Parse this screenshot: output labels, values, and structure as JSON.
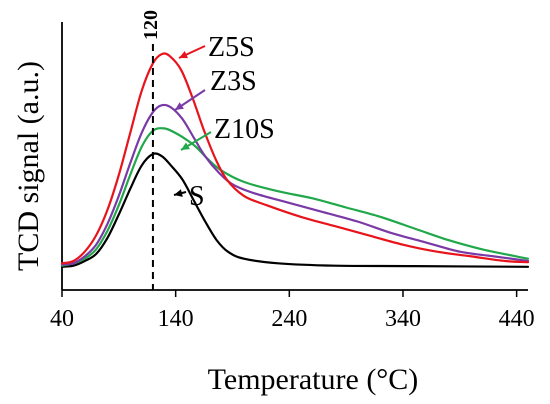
{
  "chart_data": {
    "type": "line",
    "xlabel": "Temperature (°C)",
    "ylabel": "TCD signal  (a.u.)",
    "xlim": [
      40,
      450
    ],
    "ylim": [
      0,
      1
    ],
    "x_ticks": [
      "40",
      "140",
      "240",
      "340",
      "440"
    ],
    "x_tick_values": [
      40,
      140,
      240,
      340,
      440
    ],
    "y_ticks": [],
    "grid": false,
    "reference_line": {
      "x": 120,
      "label": "120",
      "style": "dashed"
    },
    "series": [
      {
        "name": "Z5S",
        "color": "#e8141c",
        "points": [
          [
            40,
            0.02
          ],
          [
            50,
            0.03
          ],
          [
            60,
            0.07
          ],
          [
            70,
            0.14
          ],
          [
            80,
            0.25
          ],
          [
            90,
            0.4
          ],
          [
            100,
            0.58
          ],
          [
            110,
            0.76
          ],
          [
            120,
            0.88
          ],
          [
            128,
            0.92
          ],
          [
            135,
            0.91
          ],
          [
            145,
            0.85
          ],
          [
            155,
            0.73
          ],
          [
            165,
            0.59
          ],
          [
            175,
            0.47
          ],
          [
            185,
            0.38
          ],
          [
            200,
            0.31
          ],
          [
            220,
            0.27
          ],
          [
            250,
            0.22
          ],
          [
            280,
            0.18
          ],
          [
            310,
            0.14
          ],
          [
            340,
            0.1
          ],
          [
            370,
            0.07
          ],
          [
            400,
            0.05
          ],
          [
            430,
            0.03
          ],
          [
            450,
            0.025
          ]
        ]
      },
      {
        "name": "Z3S",
        "color": "#7a3aa6",
        "points": [
          [
            40,
            0.015
          ],
          [
            50,
            0.02
          ],
          [
            60,
            0.05
          ],
          [
            70,
            0.1
          ],
          [
            80,
            0.19
          ],
          [
            90,
            0.31
          ],
          [
            100,
            0.45
          ],
          [
            110,
            0.58
          ],
          [
            120,
            0.67
          ],
          [
            128,
            0.7
          ],
          [
            136,
            0.69
          ],
          [
            146,
            0.64
          ],
          [
            156,
            0.56
          ],
          [
            166,
            0.48
          ],
          [
            178,
            0.41
          ],
          [
            190,
            0.36
          ],
          [
            210,
            0.32
          ],
          [
            240,
            0.28
          ],
          [
            270,
            0.24
          ],
          [
            300,
            0.2
          ],
          [
            330,
            0.15
          ],
          [
            360,
            0.11
          ],
          [
            390,
            0.07
          ],
          [
            420,
            0.05
          ],
          [
            450,
            0.03
          ]
        ]
      },
      {
        "name": "Z10S",
        "color": "#20a84a",
        "points": [
          [
            40,
            0.01
          ],
          [
            50,
            0.02
          ],
          [
            60,
            0.04
          ],
          [
            70,
            0.08
          ],
          [
            80,
            0.16
          ],
          [
            90,
            0.27
          ],
          [
            100,
            0.4
          ],
          [
            110,
            0.52
          ],
          [
            120,
            0.59
          ],
          [
            130,
            0.6
          ],
          [
            140,
            0.58
          ],
          [
            150,
            0.55
          ],
          [
            158,
            0.52
          ],
          [
            168,
            0.47
          ],
          [
            180,
            0.42
          ],
          [
            200,
            0.37
          ],
          [
            230,
            0.33
          ],
          [
            260,
            0.3
          ],
          [
            290,
            0.26
          ],
          [
            320,
            0.22
          ],
          [
            350,
            0.17
          ],
          [
            380,
            0.12
          ],
          [
            410,
            0.08
          ],
          [
            450,
            0.04
          ]
        ]
      },
      {
        "name": "S",
        "color": "#000000",
        "points": [
          [
            40,
            0.005
          ],
          [
            50,
            0.01
          ],
          [
            60,
            0.03
          ],
          [
            70,
            0.06
          ],
          [
            80,
            0.13
          ],
          [
            90,
            0.23
          ],
          [
            100,
            0.34
          ],
          [
            110,
            0.44
          ],
          [
            120,
            0.49
          ],
          [
            128,
            0.48
          ],
          [
            136,
            0.44
          ],
          [
            146,
            0.38
          ],
          [
            156,
            0.29
          ],
          [
            166,
            0.2
          ],
          [
            176,
            0.12
          ],
          [
            186,
            0.07
          ],
          [
            200,
            0.04
          ],
          [
            230,
            0.02
          ],
          [
            280,
            0.01
          ],
          [
            350,
            0.008
          ],
          [
            450,
            0.005
          ]
        ]
      }
    ],
    "annotations": [
      {
        "text": "Z5S",
        "series": "Z5S"
      },
      {
        "text": "Z3S",
        "series": "Z3S"
      },
      {
        "text": "Z10S",
        "series": "Z10S"
      },
      {
        "text": "S",
        "series": "S"
      }
    ]
  }
}
